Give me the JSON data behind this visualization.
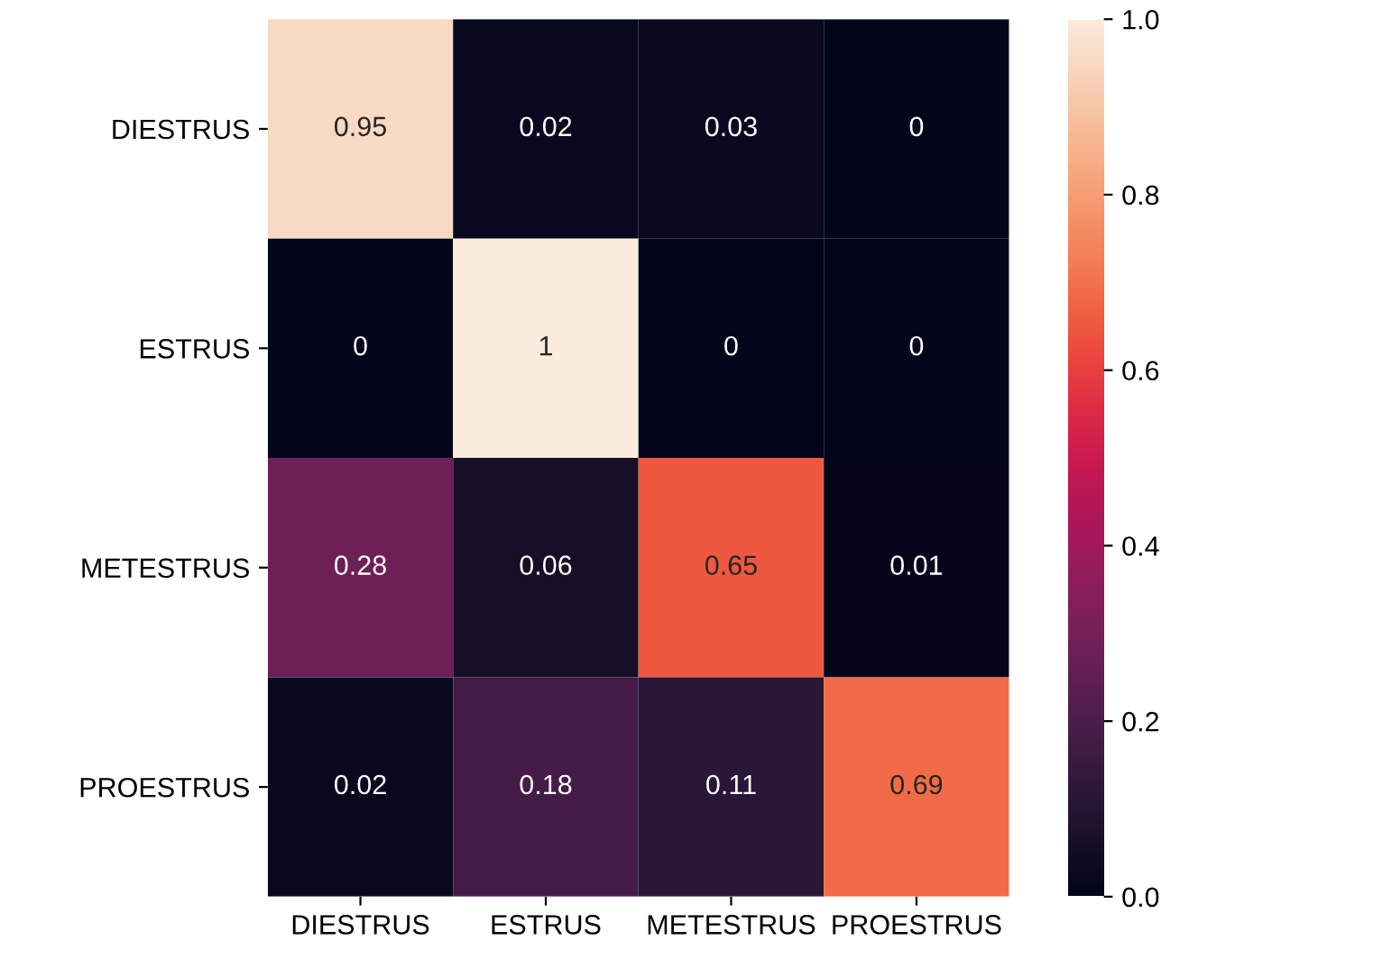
{
  "chart_data": {
    "type": "heatmap",
    "categories": [
      "DIESTRUS",
      "ESTRUS",
      "METESTRUS",
      "PROESTRUS"
    ],
    "y_categories": [
      "DIESTRUS",
      "ESTRUS",
      "METESTRUS",
      "PROESTRUS"
    ],
    "cells": [
      [
        0.95,
        0.02,
        0.03,
        0
      ],
      [
        0,
        1,
        0,
        0
      ],
      [
        0.28,
        0.06,
        0.65,
        0.01
      ],
      [
        0.02,
        0.18,
        0.11,
        0.69
      ]
    ],
    "data_labels": true,
    "clim": [
      0,
      1
    ],
    "cticks": [
      {
        "value": 0,
        "label": "0.0"
      },
      0.2,
      0.4,
      0.6,
      0.8,
      {
        "value": 1,
        "label": "1.0"
      }
    ]
  }
}
